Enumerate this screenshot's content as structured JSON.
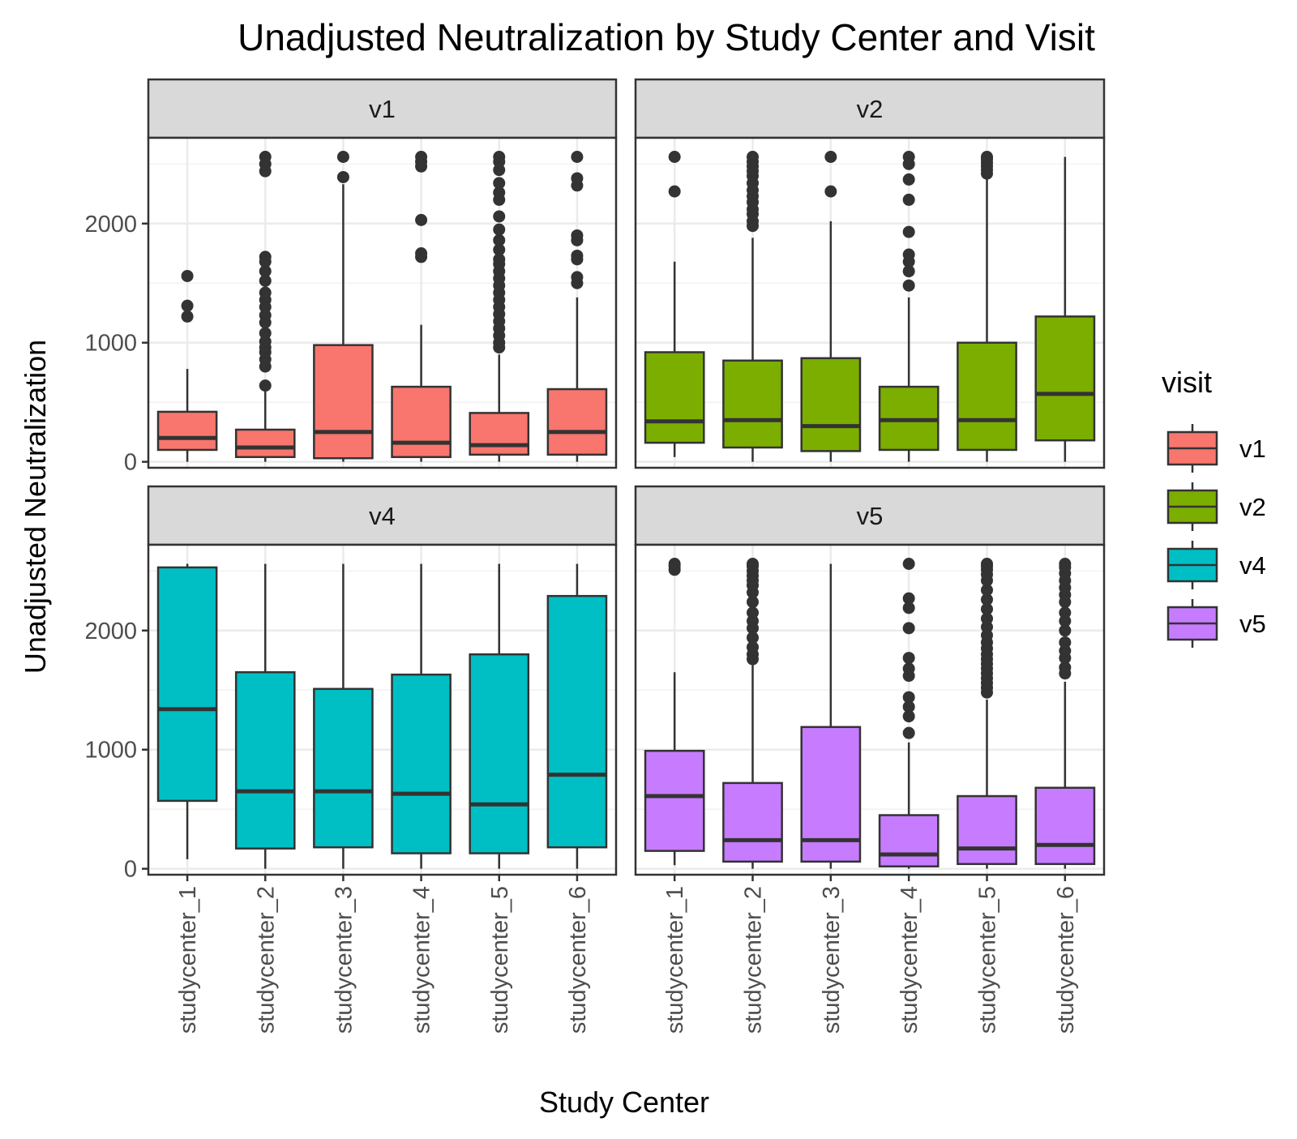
{
  "chart_data": {
    "type": "boxplot",
    "title": "Unadjusted Neutralization by Study Center and Visit",
    "xlabel": "Study Center",
    "ylabel": "Unadjusted Neutralization",
    "ylim": [
      -50,
      2720
    ],
    "yticks": [
      0,
      1000,
      2000
    ],
    "categories": [
      "studycenter_1",
      "studycenter_2",
      "studycenter_3",
      "studycenter_4",
      "studycenter_5",
      "studycenter_6"
    ],
    "facet_layout": "2x2",
    "grid": true,
    "legend": {
      "title": "visit",
      "position": "right",
      "entries": [
        {
          "name": "v1",
          "color": "#F8766D"
        },
        {
          "name": "v2",
          "color": "#7CAE00"
        },
        {
          "name": "v4",
          "color": "#00BFC4"
        },
        {
          "name": "v5",
          "color": "#C77CFF"
        }
      ]
    },
    "panels": [
      {
        "name": "v1",
        "color": "#F8766D",
        "boxes": [
          {
            "category": "studycenter_1",
            "lower_whisker": 0,
            "q1": 100,
            "median": 200,
            "q3": 420,
            "upper_whisker": 780,
            "outliers": [
              1220,
              1310,
              1560
            ]
          },
          {
            "category": "studycenter_2",
            "lower_whisker": 0,
            "q1": 40,
            "median": 120,
            "q3": 270,
            "upper_whisker": 600,
            "outliers": [
              640,
              800,
              860,
              920,
              960,
              1010,
              1080,
              1170,
              1230,
              1300,
              1360,
              1420,
              1520,
              1600,
              1680,
              1720,
              2440,
              2500,
              2560
            ]
          },
          {
            "category": "studycenter_3",
            "lower_whisker": 0,
            "q1": 30,
            "median": 250,
            "q3": 980,
            "upper_whisker": 2330,
            "outliers": [
              2390,
              2560
            ]
          },
          {
            "category": "studycenter_4",
            "lower_whisker": 0,
            "q1": 40,
            "median": 160,
            "q3": 630,
            "upper_whisker": 1150,
            "outliers": [
              1720,
              1750,
              2030,
              2480,
              2520,
              2560
            ]
          },
          {
            "category": "studycenter_5",
            "lower_whisker": 0,
            "q1": 60,
            "median": 140,
            "q3": 410,
            "upper_whisker": 900,
            "outliers": [
              960,
              1000,
              1060,
              1120,
              1180,
              1240,
              1300,
              1360,
              1420,
              1480,
              1540,
              1600,
              1660,
              1700,
              1780,
              1860,
              1950,
              2060,
              2200,
              2260,
              2340,
              2450,
              2520,
              2560
            ]
          },
          {
            "category": "studycenter_6",
            "lower_whisker": 0,
            "q1": 60,
            "median": 250,
            "q3": 610,
            "upper_whisker": 1380,
            "outliers": [
              1500,
              1550,
              1700,
              1730,
              1860,
              1900,
              2320,
              2380,
              2560
            ]
          }
        ]
      },
      {
        "name": "v2",
        "color": "#7CAE00",
        "boxes": [
          {
            "category": "studycenter_1",
            "lower_whisker": 40,
            "q1": 160,
            "median": 340,
            "q3": 920,
            "upper_whisker": 1680,
            "outliers": [
              2270,
              2560
            ]
          },
          {
            "category": "studycenter_2",
            "lower_whisker": 0,
            "q1": 120,
            "median": 350,
            "q3": 850,
            "upper_whisker": 1880,
            "outliers": [
              1980,
              2020,
              2080,
              2120,
              2180,
              2230,
              2280,
              2340,
              2400,
              2440,
              2480,
              2520,
              2560
            ]
          },
          {
            "category": "studycenter_3",
            "lower_whisker": 0,
            "q1": 90,
            "median": 300,
            "q3": 870,
            "upper_whisker": 2020,
            "outliers": [
              2270,
              2560
            ]
          },
          {
            "category": "studycenter_4",
            "lower_whisker": 0,
            "q1": 100,
            "median": 350,
            "q3": 630,
            "upper_whisker": 1380,
            "outliers": [
              1480,
              1600,
              1680,
              1740,
              1930,
              2200,
              2370,
              2500,
              2560
            ]
          },
          {
            "category": "studycenter_5",
            "lower_whisker": 0,
            "q1": 100,
            "median": 350,
            "q3": 1000,
            "upper_whisker": 2380,
            "outliers": [
              2420,
              2450,
              2480,
              2510,
              2540,
              2560
            ]
          },
          {
            "category": "studycenter_6",
            "lower_whisker": 0,
            "q1": 180,
            "median": 570,
            "q3": 1220,
            "upper_whisker": 2560,
            "outliers": []
          }
        ]
      },
      {
        "name": "v4",
        "color": "#00BFC4",
        "boxes": [
          {
            "category": "studycenter_1",
            "lower_whisker": 80,
            "q1": 570,
            "median": 1340,
            "q3": 2530,
            "upper_whisker": 2560,
            "outliers": []
          },
          {
            "category": "studycenter_2",
            "lower_whisker": 0,
            "q1": 170,
            "median": 650,
            "q3": 1650,
            "upper_whisker": 2560,
            "outliers": []
          },
          {
            "category": "studycenter_3",
            "lower_whisker": 0,
            "q1": 180,
            "median": 650,
            "q3": 1510,
            "upper_whisker": 2560,
            "outliers": []
          },
          {
            "category": "studycenter_4",
            "lower_whisker": 0,
            "q1": 130,
            "median": 630,
            "q3": 1630,
            "upper_whisker": 2560,
            "outliers": []
          },
          {
            "category": "studycenter_5",
            "lower_whisker": 0,
            "q1": 130,
            "median": 540,
            "q3": 1800,
            "upper_whisker": 2560,
            "outliers": []
          },
          {
            "category": "studycenter_6",
            "lower_whisker": 0,
            "q1": 180,
            "median": 790,
            "q3": 2290,
            "upper_whisker": 2560,
            "outliers": []
          }
        ]
      },
      {
        "name": "v5",
        "color": "#C77CFF",
        "boxes": [
          {
            "category": "studycenter_1",
            "lower_whisker": 30,
            "q1": 150,
            "median": 610,
            "q3": 990,
            "upper_whisker": 1650,
            "outliers": [
              2510,
              2540,
              2560
            ]
          },
          {
            "category": "studycenter_2",
            "lower_whisker": 0,
            "q1": 60,
            "median": 240,
            "q3": 720,
            "upper_whisker": 1710,
            "outliers": [
              1760,
              1800,
              1860,
              1940,
              2020,
              2080,
              2150,
              2240,
              2320,
              2380,
              2420,
              2460,
              2500,
              2540,
              2560
            ]
          },
          {
            "category": "studycenter_3",
            "lower_whisker": 0,
            "q1": 60,
            "median": 240,
            "q3": 1190,
            "upper_whisker": 2560,
            "outliers": []
          },
          {
            "category": "studycenter_4",
            "lower_whisker": 0,
            "q1": 20,
            "median": 120,
            "q3": 450,
            "upper_whisker": 1060,
            "outliers": [
              1140,
              1280,
              1360,
              1440,
              1620,
              1680,
              1770,
              2020,
              2190,
              2270,
              2560
            ]
          },
          {
            "category": "studycenter_5",
            "lower_whisker": 0,
            "q1": 40,
            "median": 170,
            "q3": 610,
            "upper_whisker": 1420,
            "outliers": [
              1480,
              1520,
              1560,
              1600,
              1640,
              1680,
              1720,
              1760,
              1800,
              1850,
              1900,
              1960,
              2030,
              2100,
              2180,
              2260,
              2340,
              2420,
              2470,
              2510,
              2540,
              2560
            ]
          },
          {
            "category": "studycenter_6",
            "lower_whisker": 0,
            "q1": 40,
            "median": 200,
            "q3": 680,
            "upper_whisker": 1570,
            "outliers": [
              1640,
              1690,
              1770,
              1830,
              1900,
              2000,
              2080,
              2150,
              2240,
              2300,
              2360,
              2420,
              2480,
              2530,
              2560
            ]
          }
        ]
      }
    ]
  }
}
